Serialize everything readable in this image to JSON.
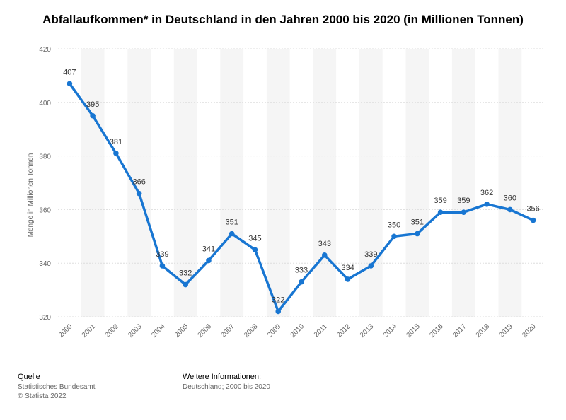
{
  "chart_data": {
    "type": "line",
    "title": "Abfallaufkommen* in Deutschland in den Jahren 2000 bis 2020 (in Millionen Tonnen)",
    "xlabel": "",
    "ylabel": "Menge in Millionen Tonnen",
    "categories": [
      "2000",
      "2001",
      "2002",
      "2003",
      "2004",
      "2005",
      "2006",
      "2007",
      "2008",
      "2009",
      "2010",
      "2011",
      "2012",
      "2013",
      "2014",
      "2015",
      "2016",
      "2017",
      "2018",
      "2019",
      "2020"
    ],
    "series": [
      {
        "name": "Abfallaufkommen",
        "values": [
          407,
          395,
          381,
          366,
          339,
          332,
          341,
          351,
          345,
          322,
          333,
          343,
          334,
          339,
          350,
          351,
          359,
          359,
          362,
          360,
          356
        ]
      }
    ],
    "ylim": [
      320,
      420
    ],
    "yticks": [
      320,
      340,
      360,
      380,
      400,
      420
    ],
    "grid": true,
    "data_labels": true,
    "line_color": "#1876d2",
    "band_color": "#f5f5f5"
  },
  "footer": {
    "source_heading": "Quelle",
    "source_lines": [
      "Statistisches Bundesamt",
      "© Statista 2022"
    ],
    "info_heading": "Weitere Informationen:",
    "info_lines": [
      "Deutschland; 2000 bis 2020"
    ]
  }
}
